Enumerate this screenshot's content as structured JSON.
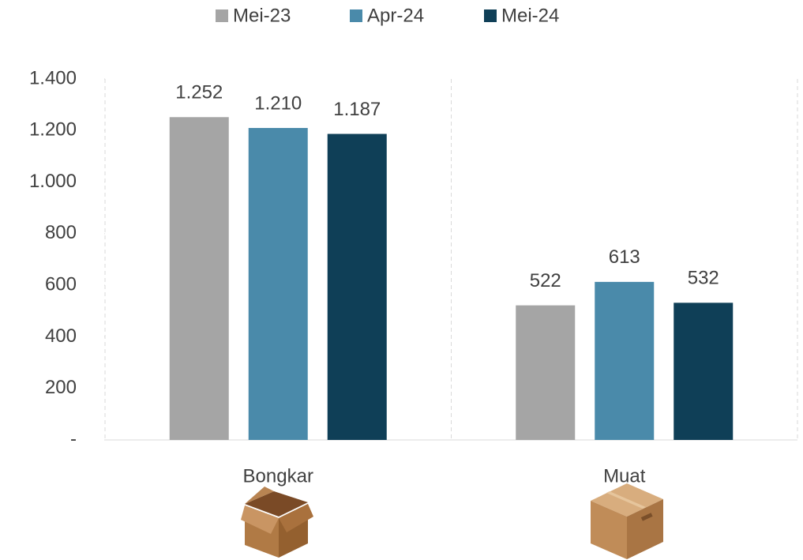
{
  "chart_data": {
    "type": "bar",
    "categories": [
      "Bongkar",
      "Muat"
    ],
    "series": [
      {
        "name": "Mei-23",
        "color": "#a5a5a5",
        "values": [
          1252,
          522
        ],
        "value_labels": [
          "1.252",
          "522"
        ]
      },
      {
        "name": "Apr-24",
        "color": "#4a8aaa",
        "values": [
          1210,
          613
        ],
        "value_labels": [
          "1.210",
          "613"
        ]
      },
      {
        "name": "Mei-24",
        "color": "#0f3f57",
        "values": [
          1187,
          532
        ],
        "value_labels": [
          "1.187",
          "532"
        ]
      }
    ],
    "ylim": [
      0,
      1400
    ],
    "yticks": [
      {
        "value": 0,
        "label": "-"
      },
      200,
      400,
      600,
      800,
      {
        "value": 1000,
        "label": "1.000"
      },
      {
        "value": 1200,
        "label": "1.200"
      },
      {
        "value": 1400,
        "label": "1.400"
      }
    ],
    "grid": true,
    "legend": "top"
  }
}
